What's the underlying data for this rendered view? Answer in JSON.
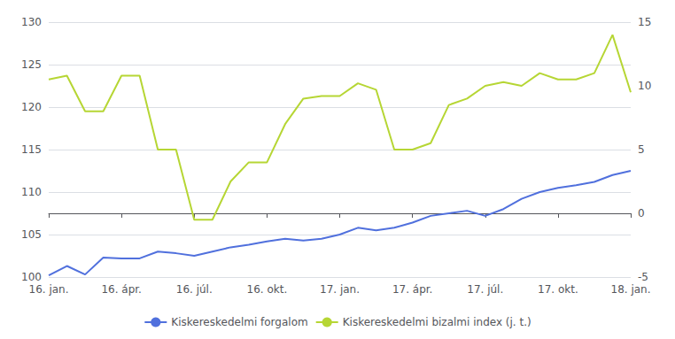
{
  "chart_data": {
    "type": "line",
    "categories": [
      "16. jan.",
      null,
      null,
      null,
      "16. ápr.",
      null,
      null,
      null,
      "16. júl.",
      null,
      null,
      null,
      "16. okt.",
      null,
      null,
      null,
      "17. jan.",
      null,
      null,
      null,
      "17. ápr.",
      null,
      null,
      null,
      "17. júl.",
      null,
      null,
      null,
      "17. okt.",
      null,
      null,
      null,
      "18. jan."
    ],
    "series": [
      {
        "name": "Kiskereskedelmi forgalom",
        "values": [
          100.2,
          101.3,
          100.3,
          102.3,
          102.2,
          102.2,
          103.0,
          102.8,
          102.5,
          103.0,
          103.5,
          103.8,
          104.2,
          104.5,
          104.3,
          104.5,
          105.0,
          105.8,
          105.5,
          105.8,
          106.4,
          107.2,
          107.5,
          107.8,
          107.2,
          108.0,
          109.2,
          110.0,
          110.5,
          110.8,
          111.2,
          112.0,
          112.5
        ]
      },
      {
        "name": "Kiskereskedelmi bizalmi index (j. t.)",
        "axis": "y2",
        "values": [
          10.5,
          10.8,
          8.0,
          8.0,
          10.8,
          10.8,
          5.0,
          5.0,
          -0.5,
          -0.5,
          2.5,
          4.0,
          4.0,
          7.0,
          9.0,
          9.2,
          9.2,
          10.2,
          9.7,
          5.0,
          5.0,
          5.5,
          8.5,
          9.0,
          10.0,
          10.3,
          10.0,
          11.0,
          10.5,
          10.5,
          11.0,
          14.0,
          9.5
        ]
      }
    ],
    "ylim": [
      100,
      130
    ],
    "yticks": [
      100,
      105,
      110,
      115,
      120,
      125,
      130
    ],
    "y2lim": [
      -5,
      15
    ],
    "y2ticks": [
      -5,
      0,
      5,
      10,
      15
    ],
    "grid": true,
    "legend": "bottom"
  }
}
